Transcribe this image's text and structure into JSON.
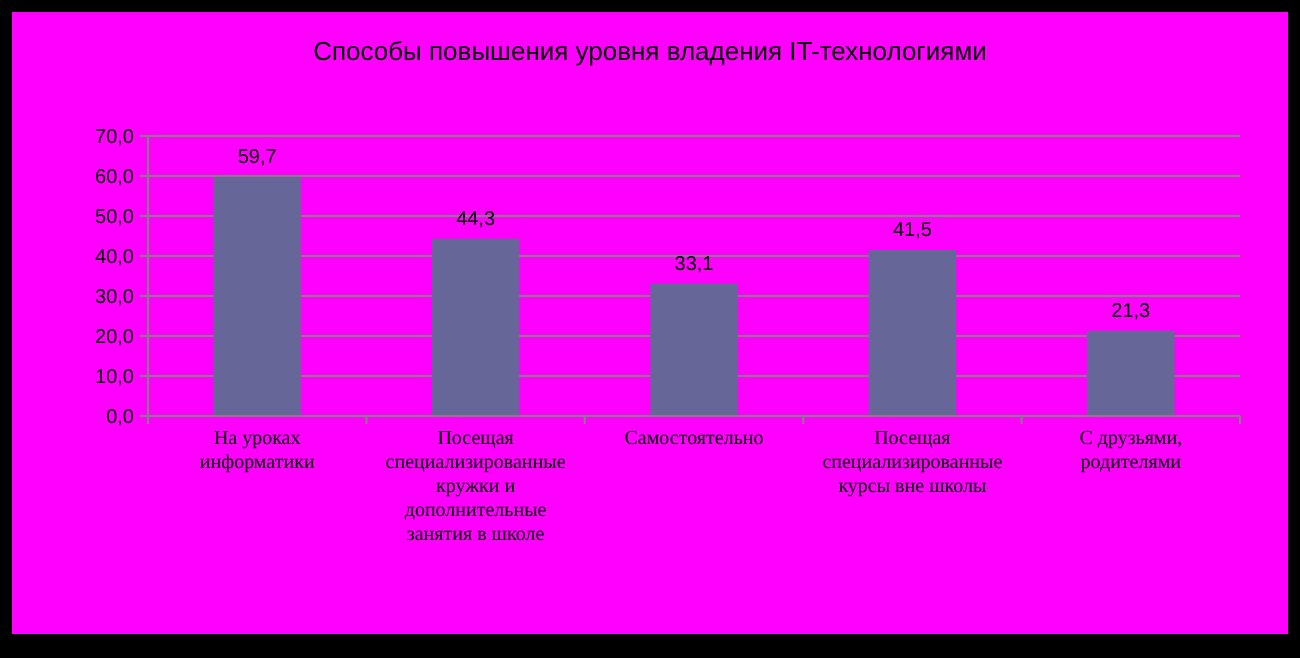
{
  "chart_data": {
    "type": "bar",
    "title": "Способы повышения уровня владения IT-технологиями",
    "categories": [
      "На уроках информатики",
      "Посещая специализированные кружки и дополнительные занятия в школе",
      "Самостоятельно",
      "Посещая специализированные курсы вне школы",
      "С друзьями, родителями"
    ],
    "values": [
      59.7,
      44.3,
      33.1,
      41.5,
      21.3
    ],
    "value_labels": [
      "59,7",
      "44,3",
      "33,1",
      "41,5",
      "21,3"
    ],
    "color": "#666699",
    "ylim": [
      0,
      70
    ],
    "yticks": [
      {
        "value": 0,
        "label": "0,0"
      },
      {
        "value": 10,
        "label": "10,0"
      },
      {
        "value": 20,
        "label": "20,0"
      },
      {
        "value": 30,
        "label": "30,0"
      },
      {
        "value": 40,
        "label": "40,0"
      },
      {
        "value": 50,
        "label": "50,0"
      },
      {
        "value": 60,
        "label": "60,0"
      },
      {
        "value": 70,
        "label": "70,0"
      }
    ],
    "grid": "y"
  }
}
